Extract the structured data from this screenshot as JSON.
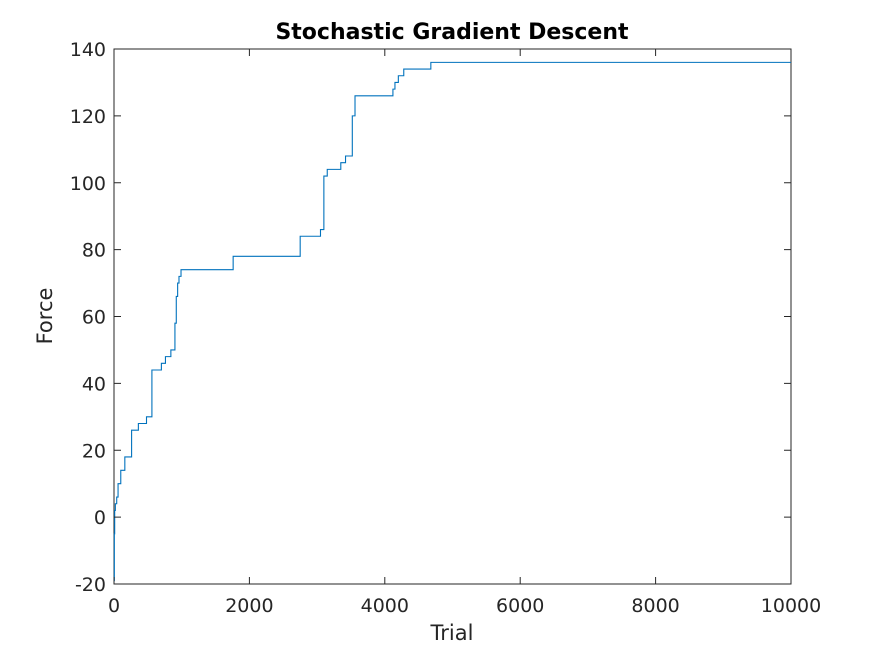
{
  "chart_data": {
    "type": "line",
    "title": "Stochastic Gradient Descent",
    "xlabel": "Trial",
    "ylabel": "Force",
    "xlim": [
      0,
      10000
    ],
    "ylim": [
      -20,
      140
    ],
    "xticks": [
      0,
      2000,
      4000,
      6000,
      8000,
      10000
    ],
    "yticks": [
      -20,
      0,
      20,
      40,
      60,
      80,
      100,
      120,
      140
    ],
    "grid": false,
    "legend": "none",
    "series": [
      {
        "color": "#0072BD",
        "step": true,
        "x": [
          0,
          5,
          10,
          20,
          40,
          60,
          100,
          160,
          260,
          360,
          480,
          560,
          700,
          760,
          840,
          900,
          920,
          940,
          960,
          990,
          1760,
          2750,
          3050,
          3100,
          3150,
          3350,
          3420,
          3520,
          3560,
          3600,
          4120,
          4150,
          4200,
          4280,
          4680,
          10000
        ],
        "y": [
          -19,
          -5,
          2,
          4,
          6,
          10,
          14,
          18,
          26,
          28,
          30,
          44,
          46,
          48,
          50,
          58,
          66,
          70,
          72,
          74,
          78,
          84,
          86,
          102,
          104,
          106,
          108,
          120,
          126,
          126,
          128,
          130,
          132,
          134,
          136,
          136
        ]
      }
    ]
  }
}
